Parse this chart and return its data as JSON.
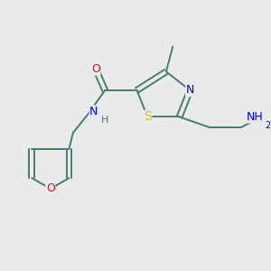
{
  "background_color": "#e8eaeb",
  "bond_color": "#4a7c6f",
  "figsize": [
    3.0,
    3.0
  ],
  "dpi": 100,
  "atom_colors": {
    "N": "#0000ff",
    "O": "#ff0000",
    "S": "#cccc00",
    "H": "#4a7c6f",
    "C": "#4a7c6f"
  }
}
